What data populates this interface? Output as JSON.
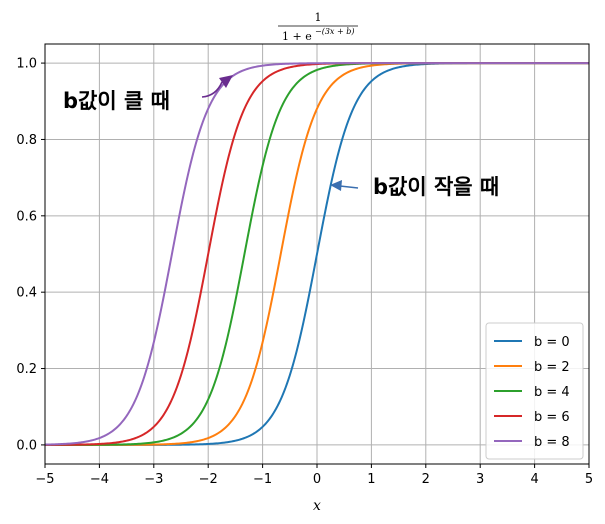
{
  "chart_data": {
    "type": "line",
    "title": {
      "numerator": "1",
      "denominator_base": "1 + e",
      "denominator_exponent": "−(3x + b)"
    },
    "xlabel": "x",
    "ylabel": "",
    "xlim": [
      -5,
      5
    ],
    "ylim": [
      -0.05,
      1.05
    ],
    "xticks": [
      "−5",
      "−4",
      "−3",
      "−2",
      "−1",
      "0",
      "1",
      "2",
      "3",
      "4",
      "5"
    ],
    "yticks": [
      "0.0",
      "0.2",
      "0.4",
      "0.6",
      "0.8",
      "1.0"
    ],
    "grid": true,
    "legend_position": "bottom-right",
    "function": "1 / (1 + exp(-(3x + b)))",
    "slope": 3,
    "series": [
      {
        "name": "b = 0",
        "b": 0,
        "color": "#1f77b4"
      },
      {
        "name": "b = 2",
        "b": 2,
        "color": "#ff7f0e"
      },
      {
        "name": "b = 4",
        "b": 4,
        "color": "#2ca02c"
      },
      {
        "name": "b = 6",
        "b": 6,
        "color": "#d62728"
      },
      {
        "name": "b = 8",
        "b": 8,
        "color": "#9467bd"
      }
    ],
    "annotations": [
      {
        "text": "b값이 클 때",
        "points_to": "b = 8",
        "arrow_color": "#6a2d8f"
      },
      {
        "text": "b값이 작을 때",
        "points_to": "b = 0",
        "arrow_color": "#3a6fb0"
      }
    ]
  }
}
